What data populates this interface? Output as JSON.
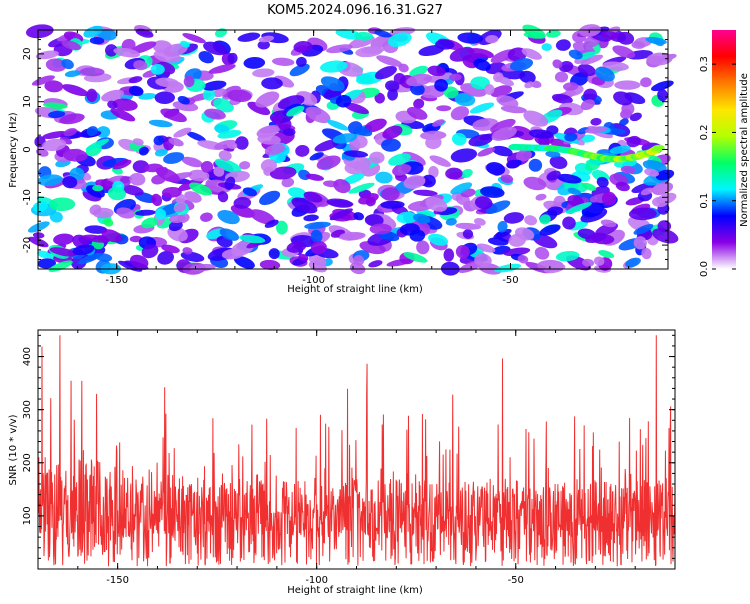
{
  "title": "KOM5.2024.096.16.31.G27",
  "chart_data": [
    {
      "type": "heatmap",
      "xlabel": "Height of straight line (km)",
      "ylabel": "Frequency (Hz)",
      "xlim": [
        -170,
        -10
      ],
      "ylim": [
        -25,
        25
      ],
      "xticks": [
        -150,
        -100,
        -50
      ],
      "yticks": [
        -20,
        -10,
        0,
        10,
        20
      ],
      "ytick_labels": [
        "-20",
        "-10",
        "0",
        "10",
        "20"
      ],
      "colorbar": {
        "label": "Normalized spectral amplitude",
        "range": [
          0.0,
          0.35
        ],
        "ticks": [
          0.0,
          0.1,
          0.2,
          0.3
        ],
        "tick_labels": [
          "0.0",
          "0.1",
          "0.2",
          "0.3"
        ],
        "colors": [
          "#ffffff",
          "#8a00e6",
          "#0000ff",
          "#00f5ff",
          "#00ff66",
          "#b4ff00",
          "#ffe600",
          "#ff7a00",
          "#ff0000",
          "#ff0090"
        ]
      },
      "signal_trace": [
        {
          "x": -49,
          "y": 0.5
        },
        {
          "x": -45,
          "y": 0.4
        },
        {
          "x": -40,
          "y": 0.3
        },
        {
          "x": -35,
          "y": -0.2
        },
        {
          "x": -30,
          "y": -1.2
        },
        {
          "x": -25,
          "y": -2.0
        },
        {
          "x": -22,
          "y": -2.0
        },
        {
          "x": -18,
          "y": -1.5
        },
        {
          "x": -14,
          "y": -0.5
        },
        {
          "x": -12,
          "y": 0.5
        }
      ],
      "signal_amplitude": 0.22
    },
    {
      "type": "line",
      "xlabel": "Height of straight line (km)",
      "ylabel": "SNR (10 * v/v)",
      "xlim": [
        -170,
        -10
      ],
      "ylim": [
        0,
        450
      ],
      "xticks": [
        -150,
        -100,
        -50
      ],
      "yticks": [
        100,
        200,
        300,
        400
      ],
      "series": [
        {
          "color": "#f03030",
          "n_samples": 1600,
          "mean": 110,
          "min": 5,
          "max": 440
        }
      ]
    }
  ]
}
